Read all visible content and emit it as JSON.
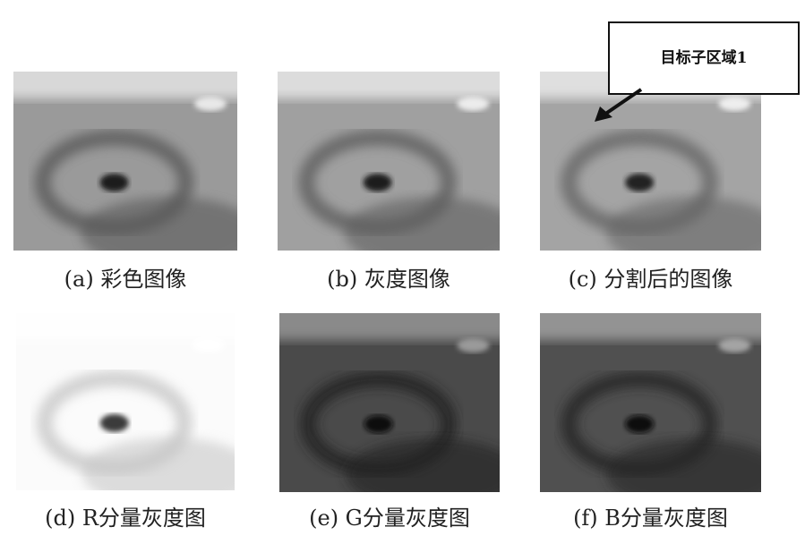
{
  "figure": {
    "panels": [
      {
        "caption": "(a) 彩色图像"
      },
      {
        "caption": "(b) 灰度图像"
      },
      {
        "caption": "(c) 分割后的图像"
      },
      {
        "caption": "(d) R分量灰度图"
      },
      {
        "caption": "(e) G分量灰度图"
      },
      {
        "caption": "(f) B分量灰度图"
      }
    ],
    "annotation": "目标子区域1"
  }
}
